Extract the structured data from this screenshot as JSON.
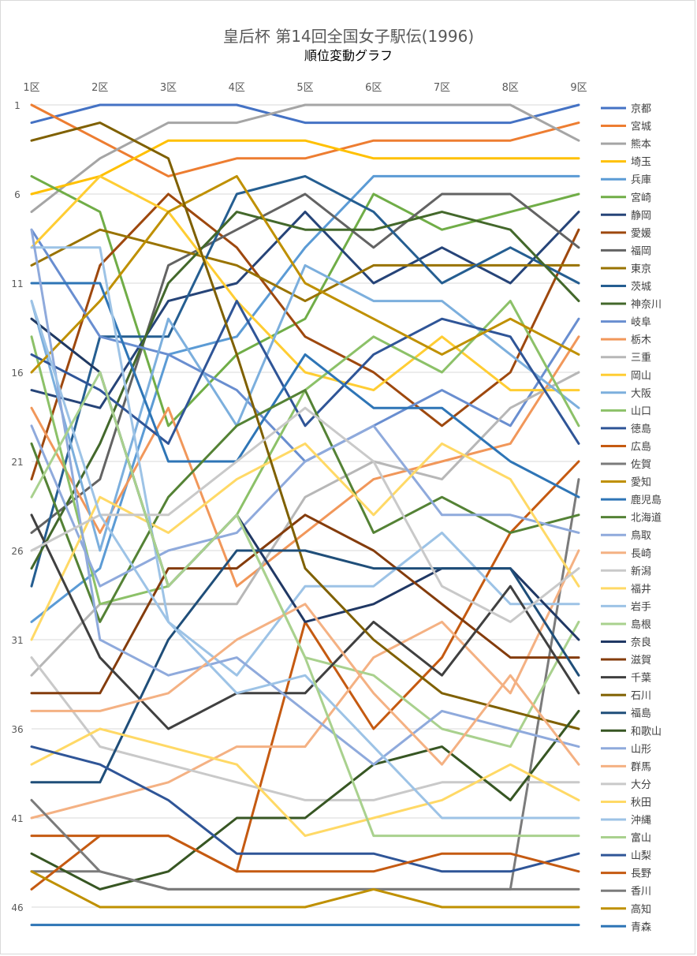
{
  "chart_data": {
    "type": "line",
    "title": "皇后杯 第14回全国女子駅伝(1996)",
    "subtitle": "順位変動グラフ",
    "categories": [
      "1区",
      "2区",
      "3区",
      "4区",
      "5区",
      "6区",
      "7区",
      "8区",
      "9区"
    ],
    "y_ticks": [
      1,
      6,
      11,
      16,
      21,
      26,
      31,
      36,
      41,
      46
    ],
    "ylim": [
      1,
      47
    ],
    "y_reversed": true,
    "legend_position": "right",
    "grid": true,
    "series": [
      {
        "name": "京都",
        "color": "#4472C4",
        "values": [
          2,
          1,
          1,
          1,
          2,
          2,
          2,
          2,
          1
        ]
      },
      {
        "name": "宮城",
        "color": "#ED7D31",
        "values": [
          1,
          3,
          5,
          4,
          4,
          3,
          3,
          3,
          2
        ]
      },
      {
        "name": "熊本",
        "color": "#A5A5A5",
        "values": [
          7,
          4,
          2,
          2,
          1,
          1,
          1,
          1,
          3
        ]
      },
      {
        "name": "埼玉",
        "color": "#FFC000",
        "values": [
          6,
          5,
          3,
          3,
          3,
          4,
          4,
          4,
          4
        ]
      },
      {
        "name": "兵庫",
        "color": "#5B9BD5",
        "values": [
          30,
          27,
          15,
          14,
          9,
          5,
          5,
          5,
          5
        ]
      },
      {
        "name": "宮崎",
        "color": "#70AD47",
        "values": [
          5,
          7,
          19,
          15,
          13,
          6,
          8,
          7,
          6
        ]
      },
      {
        "name": "静岡",
        "color": "#264478",
        "values": [
          17,
          18,
          12,
          11,
          7,
          11,
          9,
          11,
          7
        ]
      },
      {
        "name": "愛媛",
        "color": "#9E480E",
        "values": [
          22,
          10,
          6,
          9,
          14,
          16,
          19,
          16,
          8
        ]
      },
      {
        "name": "福岡",
        "color": "#636363",
        "values": [
          25,
          22,
          10,
          8,
          6,
          9,
          6,
          6,
          9
        ]
      },
      {
        "name": "東京",
        "color": "#997300",
        "values": [
          10,
          8,
          9,
          10,
          12,
          10,
          10,
          10,
          10
        ]
      },
      {
        "name": "茨城",
        "color": "#255E91",
        "values": [
          28,
          14,
          14,
          6,
          5,
          7,
          11,
          9,
          11
        ]
      },
      {
        "name": "神奈川",
        "color": "#43682B",
        "values": [
          27,
          20,
          11,
          7,
          8,
          8,
          7,
          8,
          12
        ]
      },
      {
        "name": "岐阜",
        "color": "#698ED0",
        "values": [
          8,
          14,
          15,
          17,
          21,
          19,
          17,
          19,
          13
        ]
      },
      {
        "name": "栃木",
        "color": "#F1975A",
        "values": [
          18,
          25,
          18,
          28,
          25,
          22,
          21,
          20,
          14
        ]
      },
      {
        "name": "三重",
        "color": "#B7B7B7",
        "values": [
          33,
          29,
          29,
          29,
          23,
          21,
          22,
          18,
          16
        ]
      },
      {
        "name": "岡山",
        "color": "#FFCD33",
        "values": [
          9,
          5,
          7,
          12,
          16,
          17,
          14,
          17,
          17
        ]
      },
      {
        "name": "大阪",
        "color": "#7CAFDD",
        "values": [
          12,
          26,
          13,
          19,
          10,
          12,
          12,
          15,
          18
        ]
      },
      {
        "name": "山口",
        "color": "#8CC168",
        "values": [
          14,
          29,
          28,
          24,
          17,
          14,
          16,
          12,
          19
        ]
      },
      {
        "name": "徳島",
        "color": "#2F5597",
        "values": [
          15,
          17,
          20,
          12,
          19,
          15,
          13,
          14,
          20
        ]
      },
      {
        "name": "広島",
        "color": "#C55A11",
        "values": [
          42,
          42,
          42,
          44,
          30,
          36,
          32,
          25,
          21
        ]
      },
      {
        "name": "佐賀",
        "color": "#7B7B7B",
        "values": [
          44,
          44,
          45,
          45,
          45,
          45,
          45,
          45,
          22
        ]
      },
      {
        "name": "愛知",
        "color": "#BF9000",
        "values": [
          16,
          12,
          7,
          5,
          11,
          13,
          15,
          13,
          15
        ]
      },
      {
        "name": "鹿児島",
        "color": "#2E75B6",
        "values": [
          11,
          11,
          21,
          21,
          15,
          18,
          18,
          21,
          23
        ]
      },
      {
        "name": "北海道",
        "color": "#548235",
        "values": [
          20,
          30,
          23,
          19,
          17,
          25,
          23,
          25,
          24
        ]
      },
      {
        "name": "鳥取",
        "color": "#8FAADC",
        "values": [
          19,
          28,
          26,
          25,
          21,
          19,
          24,
          24,
          25
        ]
      },
      {
        "name": "長崎",
        "color": "#F4B183",
        "values": [
          41,
          40,
          39,
          37,
          37,
          32,
          30,
          34,
          26
        ]
      },
      {
        "name": "新潟",
        "color": "#C9C9C9",
        "values": [
          32,
          37,
          38,
          39,
          40,
          40,
          39,
          39,
          39
        ]
      },
      {
        "name": "福井",
        "color": "#FFD966",
        "values": [
          31,
          23,
          25,
          22,
          20,
          24,
          20,
          22,
          28
        ]
      },
      {
        "name": "岩手",
        "color": "#9DC3E6",
        "values": [
          9,
          9,
          30,
          33,
          28,
          28,
          25,
          29,
          29
        ]
      },
      {
        "name": "島根",
        "color": "#A9D18E",
        "values": [
          13,
          16,
          28,
          24,
          32,
          33,
          36,
          37,
          30
        ]
      },
      {
        "name": "奈良",
        "color": "#203864",
        "values": [
          13,
          16,
          28,
          24,
          30,
          29,
          27,
          27,
          31
        ]
      },
      {
        "name": "滋賀",
        "color": "#843C0C",
        "values": [
          34,
          34,
          27,
          27,
          24,
          26,
          29,
          32,
          32
        ]
      },
      {
        "name": "千葉",
        "color": "#404040",
        "values": [
          24,
          32,
          36,
          34,
          34,
          30,
          33,
          28,
          34
        ]
      },
      {
        "name": "石川",
        "color": "#7F6000",
        "values": [
          3,
          2,
          4,
          15,
          27,
          31,
          34,
          35,
          36
        ]
      },
      {
        "name": "福島",
        "color": "#1F4E79",
        "values": [
          39,
          39,
          31,
          26,
          26,
          27,
          27,
          27,
          33
        ]
      },
      {
        "name": "和歌山",
        "color": "#375623",
        "values": [
          43,
          45,
          44,
          41,
          41,
          38,
          37,
          40,
          35
        ]
      },
      {
        "name": "山形",
        "color": "#8FAADC",
        "values": [
          8,
          31,
          33,
          32,
          35,
          38,
          35,
          36,
          37
        ]
      },
      {
        "name": "群馬",
        "color": "#F4B183",
        "values": [
          35,
          35,
          34,
          31,
          29,
          34,
          38,
          33,
          38
        ]
      },
      {
        "name": "大分",
        "color": "#C9C9C9",
        "values": [
          26,
          24,
          24,
          21,
          18,
          21,
          28,
          30,
          27
        ]
      },
      {
        "name": "秋田",
        "color": "#FFD966",
        "values": [
          38,
          36,
          37,
          38,
          42,
          41,
          40,
          38,
          40
        ]
      },
      {
        "name": "沖縄",
        "color": "#9DC3E6",
        "values": [
          12,
          24,
          30,
          34,
          33,
          37,
          41,
          41,
          41
        ]
      },
      {
        "name": "富山",
        "color": "#A9D18E",
        "values": [
          23,
          16,
          28,
          24,
          32,
          42,
          42,
          42,
          42
        ]
      },
      {
        "name": "山梨",
        "color": "#2F5597",
        "values": [
          37,
          38,
          40,
          43,
          43,
          43,
          44,
          44,
          43
        ]
      },
      {
        "name": "長野",
        "color": "#C55A11",
        "values": [
          45,
          42,
          42,
          44,
          44,
          44,
          43,
          43,
          44
        ]
      },
      {
        "name": "香川",
        "color": "#7B7B7B",
        "values": [
          40,
          44,
          45,
          45,
          45,
          45,
          45,
          45,
          45
        ]
      },
      {
        "name": "高知",
        "color": "#BF9000",
        "values": [
          44,
          46,
          46,
          46,
          46,
          45,
          46,
          46,
          46
        ]
      },
      {
        "name": "青森",
        "color": "#2E75B6",
        "values": [
          47,
          47,
          47,
          47,
          47,
          47,
          47,
          47,
          47
        ]
      }
    ]
  }
}
